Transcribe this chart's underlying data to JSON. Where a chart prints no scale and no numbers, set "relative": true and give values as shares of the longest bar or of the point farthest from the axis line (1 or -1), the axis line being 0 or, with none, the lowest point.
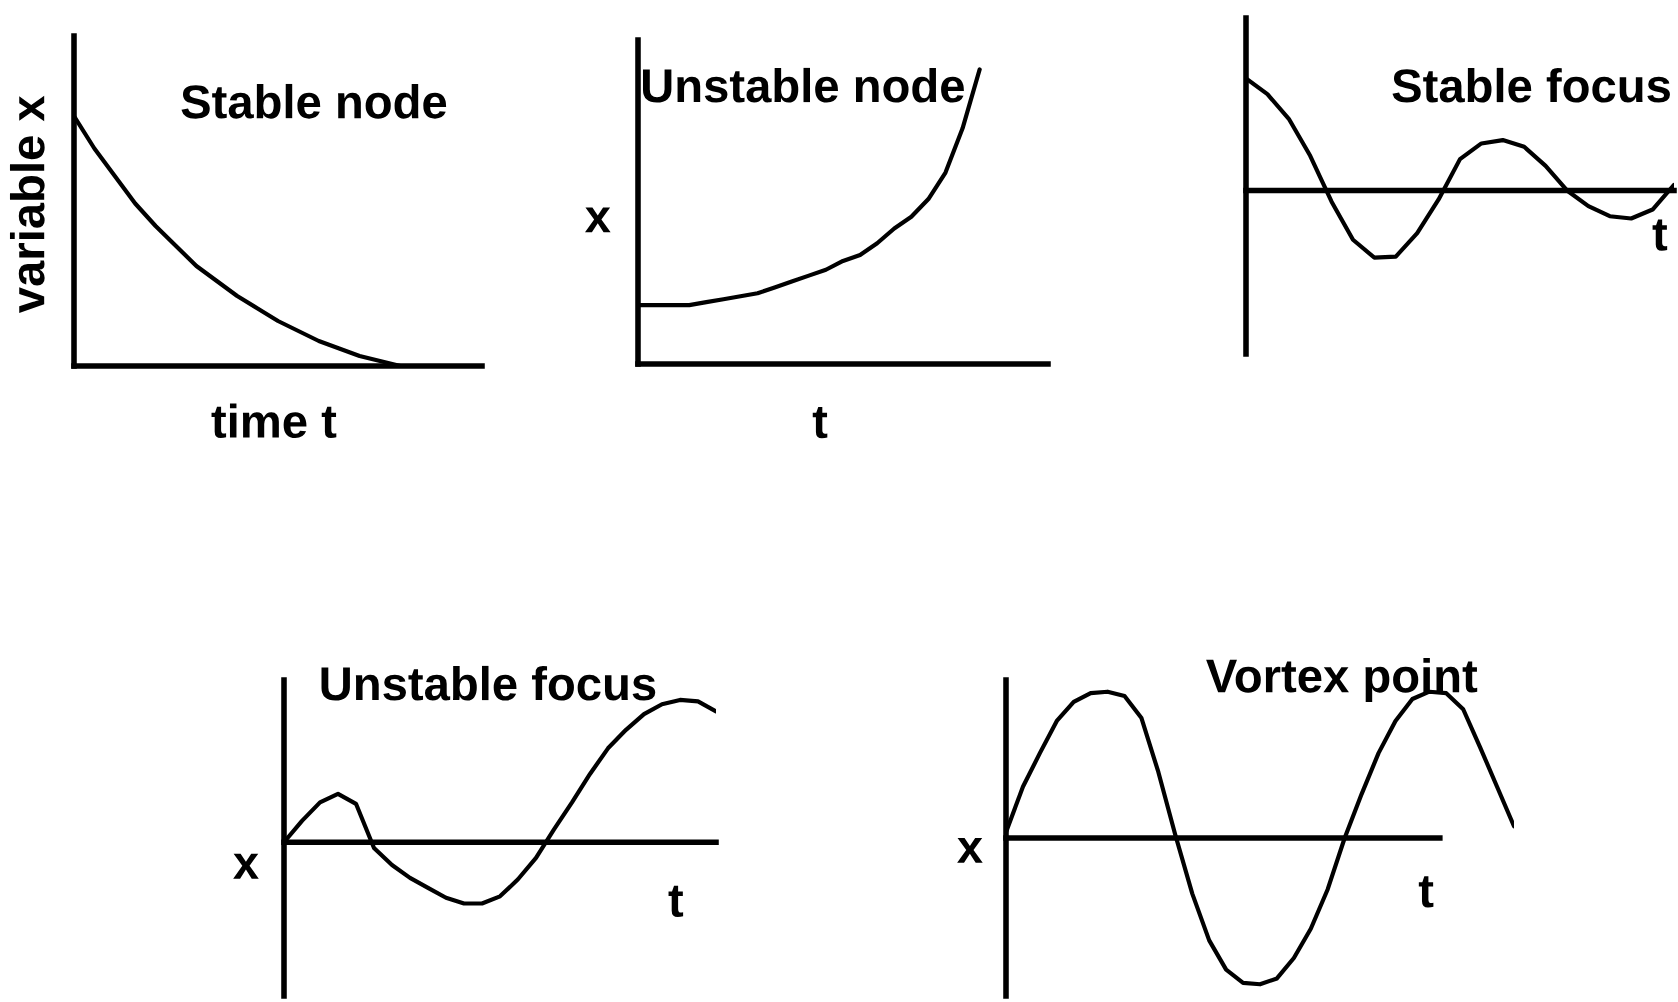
{
  "chart_data": [
    {
      "type": "line",
      "title": "Stable node",
      "xlabel": "time t",
      "ylabel": "variable x",
      "relative": true,
      "color": "#000000",
      "categories": [
        null,
        null,
        null,
        null,
        null,
        null,
        null,
        null,
        null,
        null,
        null,
        null,
        null,
        null,
        null,
        null,
        null,
        null,
        null,
        null,
        null
      ],
      "values": [
        1.0,
        0.87,
        0.76,
        0.65,
        0.56,
        0.48,
        0.4,
        0.34,
        0.28,
        0.23,
        0.18,
        0.14,
        0.1,
        0.07,
        0.04,
        0.02,
        0,
        0,
        0,
        0,
        0
      ]
    },
    {
      "type": "line",
      "title": "Unstable node",
      "xlabel": "t",
      "ylabel": "x",
      "relative": true,
      "color": "#000000",
      "categories": [
        null,
        null,
        null,
        null,
        null,
        null,
        null,
        null,
        null,
        null,
        null,
        null,
        null,
        null,
        null,
        null,
        null,
        null,
        null,
        null,
        null,
        null,
        null,
        null,
        null
      ],
      "values": [
        0.2,
        0.2,
        0.2,
        0.2,
        0.21,
        0.22,
        0.23,
        0.24,
        0.26,
        0.28,
        0.3,
        0.32,
        0.35,
        0.37,
        0.41,
        0.46,
        0.5,
        0.56,
        0.65,
        0.8,
        1.0,
        null,
        null,
        null,
        null
      ]
    },
    {
      "type": "line",
      "title": "Stable focus",
      "xlabel": "t",
      "relative": true,
      "color": "#000000",
      "categories": [
        null,
        null,
        null,
        null,
        null,
        null,
        null,
        null,
        null,
        null,
        null,
        null,
        null,
        null,
        null,
        null,
        null,
        null,
        null,
        null,
        null
      ],
      "values": [
        1.0,
        0.86,
        0.64,
        0.31,
        -0.1,
        -0.44,
        -0.6,
        -0.59,
        -0.38,
        -0.08,
        0.28,
        0.42,
        0.45,
        0.39,
        0.22,
        0.0,
        -0.14,
        -0.23,
        -0.25,
        -0.17,
        0.05
      ]
    },
    {
      "type": "line",
      "title": "Unstable focus",
      "xlabel": "t",
      "ylabel": "x",
      "relative": true,
      "color": "#000000",
      "categories": [
        null,
        null,
        null,
        null,
        null,
        null,
        null,
        null,
        null,
        null,
        null,
        null,
        null,
        null,
        null,
        null,
        null,
        null,
        null,
        null,
        null,
        null,
        null,
        null,
        null
      ],
      "values": [
        0,
        0.15,
        0.28,
        0.34,
        0.27,
        -0.04,
        -0.16,
        -0.25,
        -0.32,
        -0.39,
        -0.43,
        -0.43,
        -0.38,
        -0.26,
        -0.11,
        0.09,
        0.28,
        0.48,
        0.66,
        0.79,
        0.9,
        0.97,
        1.0,
        0.99,
        0.92
      ]
    },
    {
      "type": "line",
      "title": "Vortex point",
      "xlabel": "t",
      "ylabel": "x",
      "relative": true,
      "color": "#000000",
      "categories": [
        null,
        null,
        null,
        null,
        null,
        null,
        null,
        null,
        null,
        null,
        null,
        null,
        null,
        null,
        null,
        null,
        null,
        null,
        null,
        null,
        null,
        null,
        null,
        null,
        null,
        null,
        null,
        null,
        null,
        null,
        null
      ],
      "values": [
        0.04,
        0.35,
        0.58,
        0.8,
        0.93,
        0.99,
        1.0,
        0.97,
        0.82,
        0.45,
        0.02,
        -0.38,
        -0.7,
        -0.9,
        -0.99,
        -1.0,
        -0.96,
        -0.82,
        -0.62,
        -0.35,
        0.0,
        0.3,
        0.58,
        0.8,
        0.95,
        1.0,
        0.99,
        0.88,
        0.62,
        0.35,
        0.08
      ]
    }
  ]
}
